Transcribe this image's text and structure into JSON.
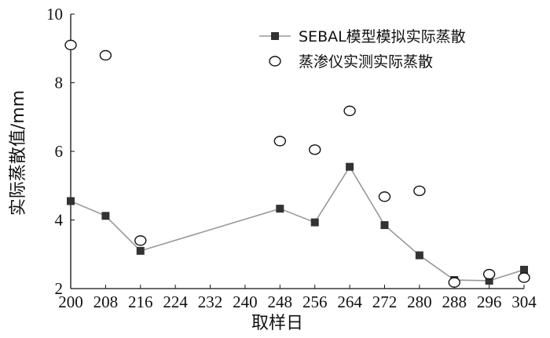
{
  "chart_data": {
    "type": "line",
    "title": "",
    "xlabel": "取样日",
    "ylabel": "实际蒸散值/mm",
    "xlim": [
      200,
      304
    ],
    "ylim": [
      2,
      10
    ],
    "x_ticks": [
      200,
      208,
      216,
      224,
      232,
      240,
      248,
      256,
      264,
      272,
      280,
      288,
      296,
      304
    ],
    "y_ticks": [
      2,
      4,
      6,
      8,
      10
    ],
    "grid": false,
    "legend_position": "top-right",
    "series": [
      {
        "name": "SEBAL模型模拟实际蒸散",
        "style": "line-square",
        "color": "#999999",
        "marker_color": "#333333",
        "x": [
          200,
          208,
          216,
          248,
          256,
          264,
          272,
          280,
          288,
          296,
          304
        ],
        "y": [
          4.55,
          4.12,
          3.1,
          4.33,
          3.93,
          5.55,
          3.85,
          2.97,
          2.25,
          2.23,
          2.55
        ]
      },
      {
        "name": "蒸渗仪实测实际蒸散",
        "style": "open-circle",
        "color": "#111111",
        "x": [
          200,
          208,
          216,
          248,
          256,
          264,
          272,
          280,
          288,
          296,
          304
        ],
        "y": [
          9.1,
          8.8,
          3.4,
          6.3,
          6.05,
          7.18,
          4.68,
          4.85,
          2.18,
          2.42,
          2.32
        ]
      }
    ]
  }
}
